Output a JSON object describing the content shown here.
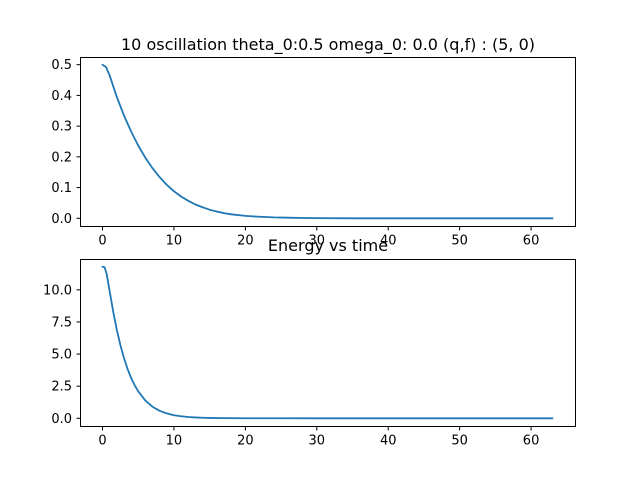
{
  "chart_data": [
    {
      "type": "line",
      "title": "10 oscillation theta_0:0.5 omega_0: 0.0 (q,f) : (5, 0)",
      "xlabel": "",
      "ylabel": "",
      "xlim": [
        -3.15,
        66.15
      ],
      "ylim": [
        -0.025,
        0.525
      ],
      "xticks": [
        0,
        10,
        20,
        30,
        40,
        50,
        60
      ],
      "xtick_labels": [
        "0",
        "10",
        "20",
        "30",
        "40",
        "50",
        "60"
      ],
      "yticks": [
        0.0,
        0.1,
        0.2,
        0.3,
        0.4,
        0.5
      ],
      "ytick_labels": [
        "0.0",
        "0.1",
        "0.2",
        "0.3",
        "0.4",
        "0.5"
      ],
      "grid": false,
      "color": "#1f77b4",
      "series": [
        {
          "x": [
            0,
            0.5,
            1,
            1.5,
            2,
            3,
            4,
            5,
            6,
            7,
            8,
            9,
            10,
            11,
            12,
            13,
            14,
            15,
            16,
            17,
            18,
            20,
            22,
            24,
            26,
            28,
            30,
            35,
            40,
            45,
            50,
            55,
            60,
            63
          ],
          "values": [
            0.5,
            0.492,
            0.465,
            0.43,
            0.395,
            0.335,
            0.283,
            0.237,
            0.197,
            0.163,
            0.134,
            0.109,
            0.088,
            0.071,
            0.057,
            0.045,
            0.036,
            0.028,
            0.022,
            0.017,
            0.013,
            0.008,
            0.005,
            0.003,
            0.002,
            0.001,
            0.0006,
            0.0001,
            0.0,
            0.0,
            0.0,
            0.0,
            0.0,
            0.0
          ]
        }
      ]
    },
    {
      "type": "line",
      "title": "Energy vs time",
      "xlabel": "",
      "ylabel": "",
      "xlim": [
        -3.15,
        66.15
      ],
      "ylim": [
        -0.6,
        12.4
      ],
      "xticks": [
        0,
        10,
        20,
        30,
        40,
        50,
        60
      ],
      "xtick_labels": [
        "0",
        "10",
        "20",
        "30",
        "40",
        "50",
        "60"
      ],
      "yticks": [
        0.0,
        2.5,
        5.0,
        7.5,
        10.0
      ],
      "ytick_labels": [
        "0.0",
        "2.5",
        "5.0",
        "7.5",
        "10.0"
      ],
      "grid": false,
      "color": "#1f77b4",
      "series": [
        {
          "x": [
            0,
            0.3,
            0.6,
            1,
            1.5,
            2,
            2.5,
            3,
            3.5,
            4,
            4.5,
            5,
            6,
            7,
            8,
            9,
            10,
            11,
            12,
            13,
            14,
            15,
            17,
            20,
            25,
            30,
            40,
            50,
            60,
            63
          ],
          "values": [
            11.8,
            11.75,
            11.2,
            9.9,
            8.3,
            6.9,
            5.7,
            4.7,
            3.85,
            3.15,
            2.58,
            2.1,
            1.38,
            0.9,
            0.58,
            0.38,
            0.24,
            0.16,
            0.1,
            0.065,
            0.042,
            0.027,
            0.012,
            0.004,
            0.001,
            0.0,
            0.0,
            0.0,
            0.0,
            0.0
          ]
        }
      ]
    }
  ]
}
